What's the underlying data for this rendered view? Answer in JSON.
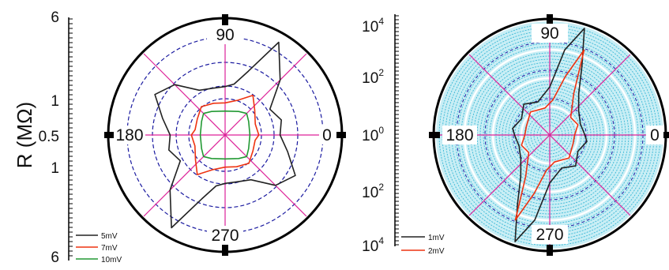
{
  "chart_data": [
    {
      "type": "polar-line",
      "ylabel": "R (MΩ)",
      "r_axis_ticks": [
        "6",
        "1",
        "0.5",
        "1",
        "6"
      ],
      "angle_labels": [
        "90",
        "180",
        "0",
        "270"
      ],
      "grid": true,
      "legend_position": "bottom-left",
      "series": [
        {
          "name": "5mV",
          "color": "#222222",
          "angles_deg": [
            0,
            15,
            30,
            45,
            60,
            70,
            80,
            90,
            105,
            120,
            135,
            150,
            165,
            180,
            195,
            210,
            225,
            240,
            250,
            260,
            270,
            285,
            300,
            315,
            330,
            345
          ],
          "values_mohm": [
            2.4,
            2.6,
            2.2,
            3.8,
            5.6,
            3.2,
            2.2,
            2.0,
            2.0,
            2.2,
            3.4,
            4.0,
            3.0,
            2.4,
            2.6,
            2.2,
            3.8,
            5.6,
            3.2,
            2.2,
            2.0,
            2.0,
            2.2,
            3.4,
            4.0,
            3.0
          ]
        },
        {
          "name": "7mV",
          "color": "#ee3311",
          "angles_deg": [
            0,
            20,
            40,
            55,
            70,
            90,
            110,
            130,
            150,
            170,
            180,
            200,
            220,
            235,
            250,
            270,
            290,
            310,
            330,
            350
          ],
          "values_mohm": [
            1.1,
            1.0,
            1.4,
            2.0,
            1.3,
            1.0,
            1.1,
            1.3,
            1.0,
            0.9,
            1.1,
            1.0,
            1.4,
            2.0,
            1.3,
            1.0,
            1.1,
            1.3,
            1.0,
            0.9
          ]
        },
        {
          "name": "10mV",
          "color": "#229933",
          "angles_deg": [
            0,
            30,
            45,
            60,
            90,
            120,
            135,
            150,
            180,
            210,
            225,
            240,
            270,
            300,
            315,
            330
          ],
          "values_mohm": [
            0.55,
            0.7,
            0.9,
            0.7,
            0.5,
            0.7,
            0.9,
            0.7,
            0.55,
            0.7,
            0.9,
            0.7,
            0.5,
            0.7,
            0.9,
            0.7
          ]
        }
      ]
    },
    {
      "type": "polar-line",
      "ylabel": "",
      "r_axis_ticks": [
        "10",
        "10",
        "10",
        "10",
        "10"
      ],
      "r_axis_exponents": [
        "4",
        "2",
        "0",
        "2",
        "4"
      ],
      "angle_labels": [
        "90",
        "180",
        "0",
        "270"
      ],
      "grid": true,
      "legend_position": "bottom-left",
      "series": [
        {
          "name": "1mV",
          "color": "#222222",
          "angles_deg": [
            0,
            20,
            40,
            55,
            65,
            72,
            80,
            90,
            110,
            130,
            150,
            170,
            180,
            200,
            220,
            235,
            245,
            252,
            260,
            270,
            290,
            310,
            330,
            350
          ],
          "values_log": [
            1.0,
            0.9,
            1.1,
            1.6,
            2.6,
            4.0,
            3.0,
            1.5,
            1.0,
            1.2,
            0.9,
            1.1,
            1.0,
            0.9,
            1.1,
            1.6,
            2.6,
            4.0,
            3.0,
            1.5,
            1.0,
            1.2,
            0.9,
            1.1
          ]
        },
        {
          "name": "2mV",
          "color": "#ee3311",
          "angles_deg": [
            0,
            20,
            40,
            60,
            68,
            75,
            85,
            100,
            130,
            160,
            180,
            200,
            220,
            240,
            248,
            255,
            265,
            280,
            310,
            340
          ],
          "values_log": [
            0.6,
            0.8,
            0.7,
            1.5,
            3.2,
            2.0,
            1.0,
            0.7,
            0.8,
            0.6,
            0.6,
            0.8,
            0.7,
            1.5,
            3.2,
            2.0,
            1.0,
            0.7,
            0.8,
            0.6
          ]
        }
      ]
    }
  ]
}
